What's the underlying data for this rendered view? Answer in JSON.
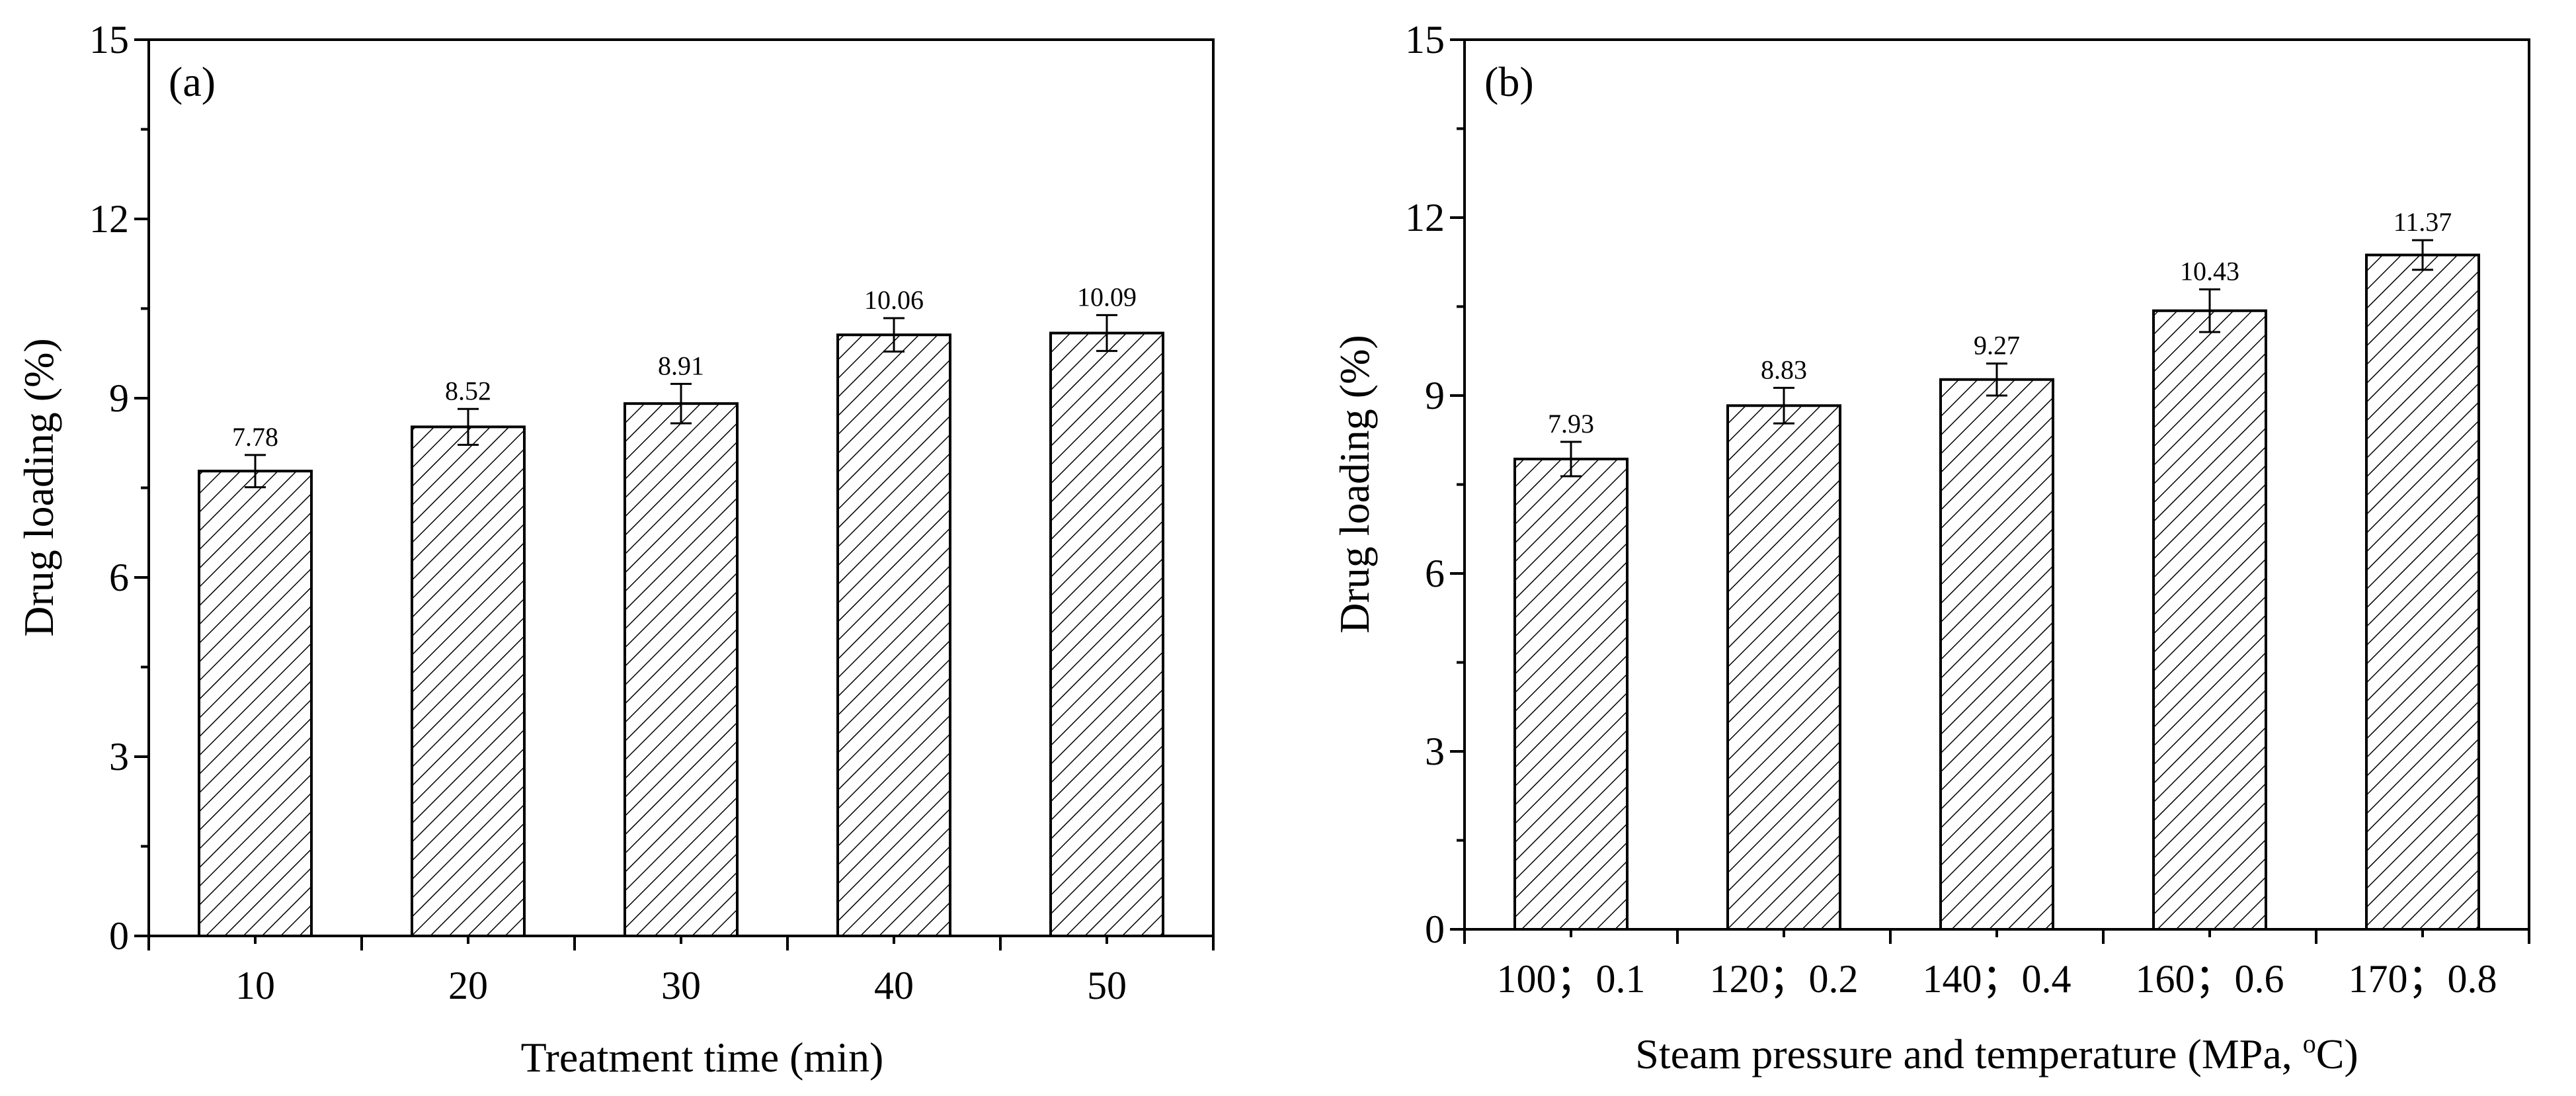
{
  "chart_data": [
    {
      "type": "bar",
      "panel_label": "(a)",
      "title": "",
      "xlabel": "Treatment time (min)",
      "ylabel": "Drug loading (%)",
      "categories": [
        "10",
        "20",
        "30",
        "40",
        "50"
      ],
      "values": [
        7.78,
        8.52,
        8.91,
        10.06,
        10.09
      ],
      "value_labels": [
        "7.78",
        "8.52",
        "8.91",
        "10.06",
        "10.09"
      ],
      "errors": [
        0.27,
        0.3,
        0.33,
        0.28,
        0.3
      ],
      "ylim": [
        0,
        15
      ],
      "yticks": [
        0,
        3,
        6,
        9,
        12,
        15
      ],
      "ytick_labels": [
        "0",
        "3",
        "6",
        "9",
        "12",
        "15"
      ],
      "grid": false,
      "bar_fill": "hatched"
    },
    {
      "type": "bar",
      "panel_label": "(b)",
      "title": "",
      "xlabel": "Steam pressure and temperature (MPa, °C)",
      "xlabel_main": "Steam pressure and temperature (MPa, ",
      "xlabel_sup": "o",
      "xlabel_end": "C)",
      "ylabel": "Drug loading (%)",
      "categories": [
        "100；0.1",
        "120；0.2",
        "140；0.4",
        "160；0.6",
        "170；0.8"
      ],
      "values": [
        7.93,
        8.83,
        9.27,
        10.43,
        11.37
      ],
      "value_labels": [
        "7.93",
        "8.83",
        "9.27",
        "10.43",
        "11.37"
      ],
      "errors": [
        0.29,
        0.3,
        0.27,
        0.36,
        0.25
      ],
      "ylim": [
        0,
        15
      ],
      "yticks": [
        0,
        3,
        6,
        9,
        12,
        15
      ],
      "ytick_labels": [
        "0",
        "3",
        "6",
        "9",
        "12",
        "15"
      ],
      "grid": false,
      "bar_fill": "hatched"
    }
  ],
  "colors": {
    "axis": "#000000",
    "bar_fill": "#ffffff",
    "hatch": "#000000",
    "background": "#ffffff"
  }
}
